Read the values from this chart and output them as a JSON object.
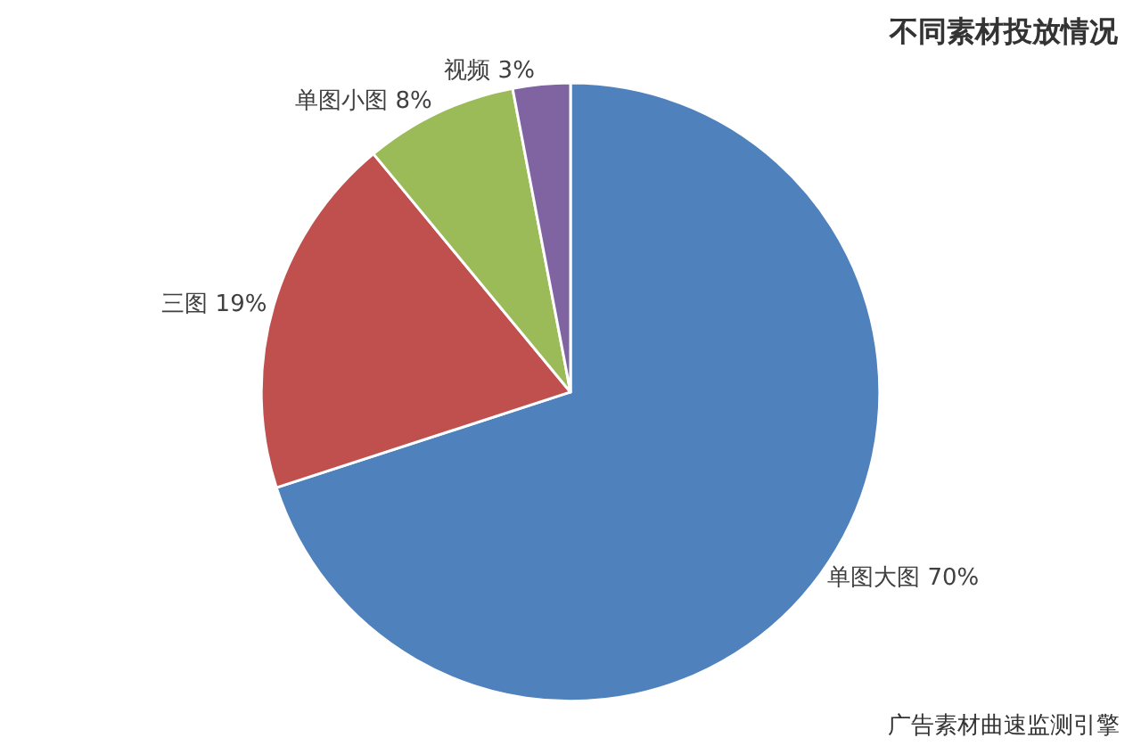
{
  "chart_data": {
    "type": "pie",
    "title": "不同素材投放情况",
    "categories": [
      "单图大图",
      "三图",
      "单图小图",
      "视频"
    ],
    "values": [
      70,
      19,
      8,
      3
    ],
    "value_labels": [
      "70%",
      "19%",
      "8%",
      "3%"
    ],
    "colors": [
      "#4f81bd",
      "#c0504d",
      "#9bbb59",
      "#8064a2"
    ],
    "legend": false,
    "annotations": [
      "广告素材曲速监测引擎"
    ]
  }
}
